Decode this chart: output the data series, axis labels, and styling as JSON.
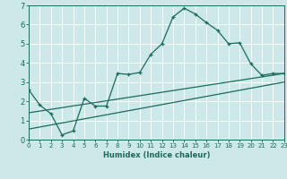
{
  "xlabel": "Humidex (Indice chaleur)",
  "xlim": [
    0,
    23
  ],
  "ylim": [
    0,
    7
  ],
  "xticks": [
    0,
    1,
    2,
    3,
    4,
    5,
    6,
    7,
    8,
    9,
    10,
    11,
    12,
    13,
    14,
    15,
    16,
    17,
    18,
    19,
    20,
    21,
    22,
    23
  ],
  "yticks": [
    0,
    1,
    2,
    3,
    4,
    5,
    6,
    7
  ],
  "bg_color": "#cce8e8",
  "line_color": "#1a6b5a",
  "grid_color": "#ffffff",
  "line1_x": [
    0,
    1,
    2,
    3,
    4,
    5,
    6,
    7,
    8,
    9,
    10,
    11,
    12,
    13,
    14,
    15,
    16,
    17,
    18,
    19,
    20,
    21,
    22,
    23
  ],
  "line1_y": [
    2.6,
    1.8,
    1.35,
    0.25,
    0.45,
    2.15,
    1.75,
    1.75,
    3.45,
    3.4,
    3.5,
    4.45,
    5.0,
    6.4,
    6.85,
    6.55,
    6.1,
    5.7,
    5.0,
    5.05,
    3.95,
    3.35,
    3.45,
    3.45
  ],
  "line2_x": [
    0,
    23
  ],
  "line2_y": [
    1.4,
    3.45
  ],
  "line3_x": [
    0,
    23
  ],
  "line3_y": [
    0.55,
    3.0
  ]
}
